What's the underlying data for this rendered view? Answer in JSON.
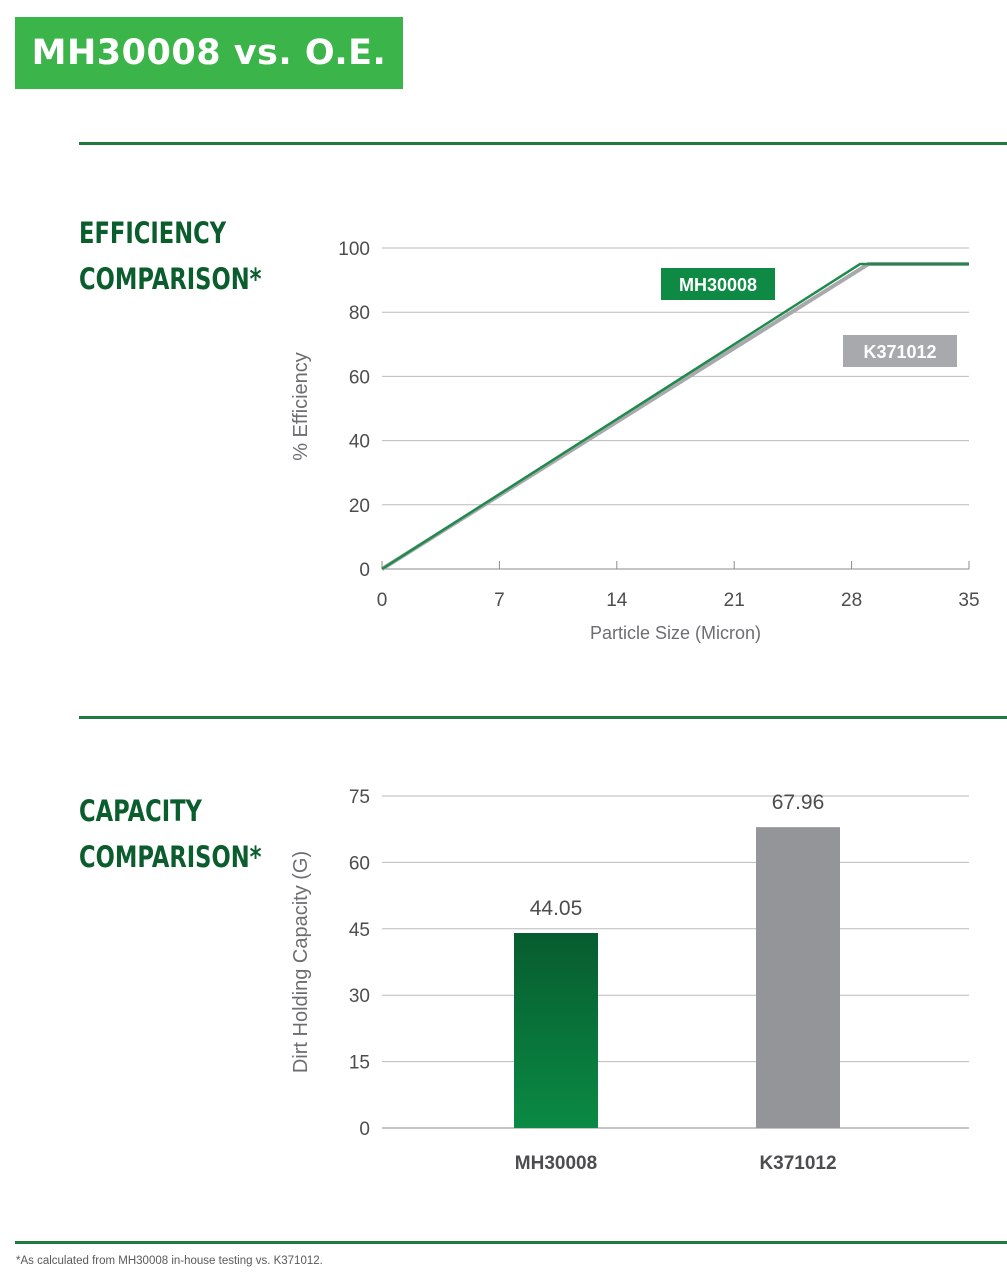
{
  "header": {
    "title": "MH30008 vs. O.E."
  },
  "efficiency_section": {
    "title_line1": "EFFICIENCY",
    "title_line2": "COMPARISON*"
  },
  "capacity_section": {
    "title_line1": "CAPACITY",
    "title_line2": "COMPARISON*"
  },
  "footnote": "*As calculated from MH30008 in-house testing vs. K371012.",
  "colors": {
    "green_dark": "#0b5d2e",
    "green_bar": "#0a8a44",
    "gray_bar": "#939598",
    "banner": "#3bb54a"
  },
  "chart_data": [
    {
      "type": "line",
      "xlabel": "Particle Size (Micron)",
      "ylabel": "% Efficiency",
      "xlim": [
        0,
        35
      ],
      "ylim": [
        0,
        100
      ],
      "x_ticks": [
        0,
        7,
        14,
        21,
        28,
        35
      ],
      "y_ticks": [
        0,
        20,
        40,
        60,
        80,
        100
      ],
      "grid": true,
      "series": [
        {
          "name": "MH30008",
          "color": "#1f8a4c",
          "x": [
            0,
            28.5,
            35
          ],
          "y": [
            0,
            95,
            95
          ]
        },
        {
          "name": "K371012",
          "color": "#a7a9ac",
          "x": [
            0,
            29,
            35
          ],
          "y": [
            0,
            95,
            95
          ]
        }
      ]
    },
    {
      "type": "bar",
      "ylabel": "Dirt Holding Capacity (G)",
      "categories": [
        "MH30008",
        "K371012"
      ],
      "values": [
        44.05,
        67.96
      ],
      "value_labels": [
        "44.05",
        "67.96"
      ],
      "ylim": [
        0,
        75
      ],
      "y_ticks": [
        0,
        15,
        30,
        45,
        60,
        75
      ],
      "grid": true
    }
  ]
}
